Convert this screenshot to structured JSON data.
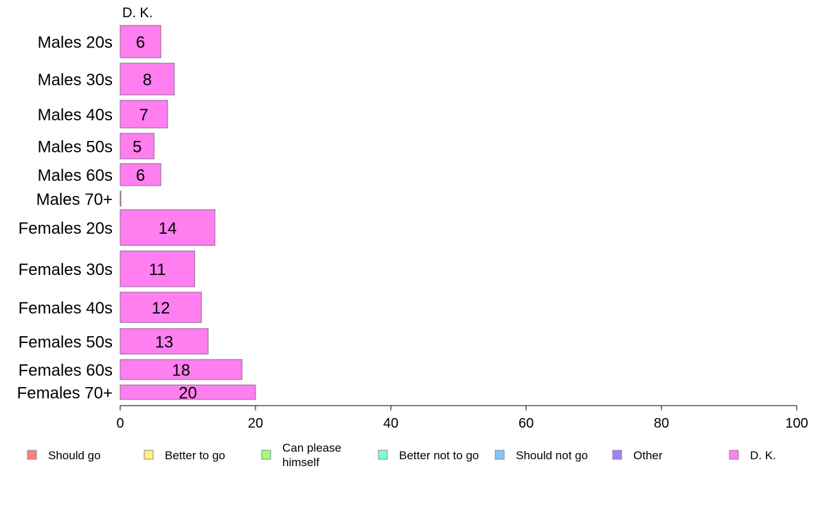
{
  "chart_data": {
    "type": "bar",
    "orientation": "horizontal",
    "series_title": "D. K.",
    "categories": [
      "Males 20s",
      "Males 30s",
      "Males 40s",
      "Males 50s",
      "Males 60s",
      "Males 70+",
      "Females 20s",
      "Females 30s",
      "Females 40s",
      "Females 50s",
      "Females 60s",
      "Females 70+"
    ],
    "values": [
      6,
      8,
      7,
      5,
      6,
      0,
      14,
      11,
      12,
      13,
      18,
      20
    ],
    "value_labels": [
      "6",
      "8",
      "7",
      "5",
      "6",
      "",
      "14",
      "11",
      "12",
      "13",
      "18",
      "20"
    ],
    "xlim": [
      0,
      100
    ],
    "xticks": [
      0,
      20,
      40,
      60,
      80,
      100
    ],
    "xtick_labels": [
      "0",
      "20",
      "40",
      "60",
      "80",
      "100"
    ],
    "grid": false,
    "legend_position": "bottom",
    "legend": [
      {
        "label": "Should go",
        "color": "#ff8080"
      },
      {
        "label": "Better to go",
        "color": "#fff080"
      },
      {
        "label": "Can please himself",
        "color": "#a0ff80"
      },
      {
        "label": "Better not to go",
        "color": "#80ffd0"
      },
      {
        "label": "Should not go",
        "color": "#80c8ff"
      },
      {
        "label": "Other",
        "color": "#a080ff"
      },
      {
        "label": "D. K.",
        "color": "#ff7ff0"
      }
    ],
    "bar_color": "#ff7ff0"
  }
}
